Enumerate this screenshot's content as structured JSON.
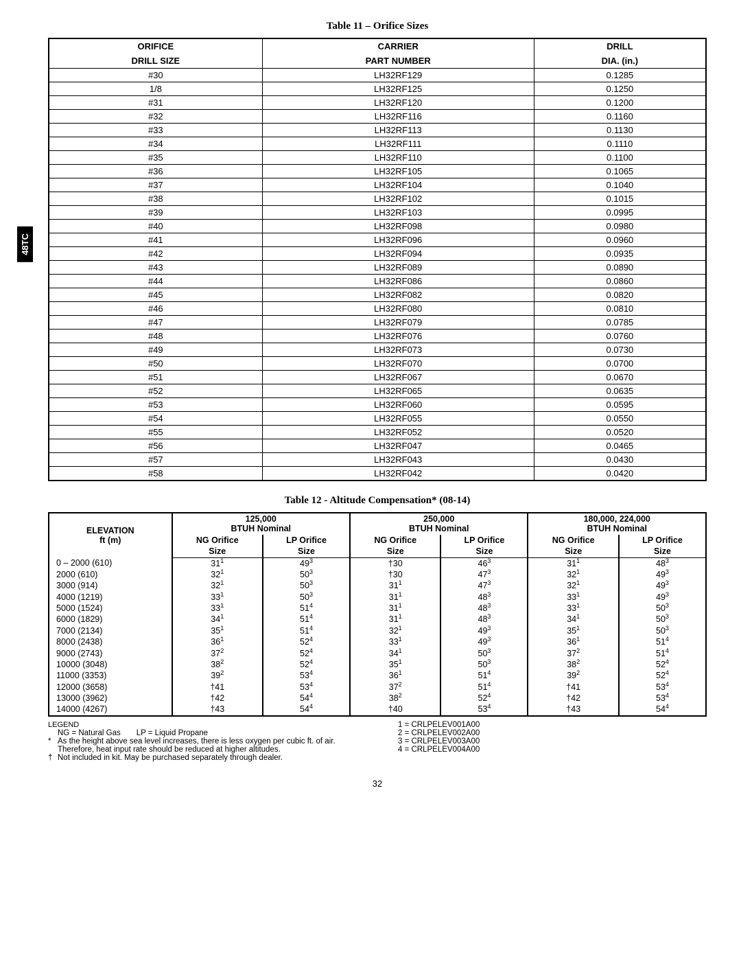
{
  "side_tab": "48TC",
  "table11": {
    "title": "Table 11 – Orifice Sizes",
    "headers": {
      "col1_line1": "ORIFICE",
      "col1_line2": "DRILL SIZE",
      "col2_line1": "CARRIER",
      "col2_line2": "PART NUMBER",
      "col3_line1": "DRILL",
      "col3_line2": "DIA. (in.)"
    },
    "rows": [
      [
        "#30",
        "LH32RF129",
        "0.1285"
      ],
      [
        "1/8",
        "LH32RF125",
        "0.1250"
      ],
      [
        "#31",
        "LH32RF120",
        "0.1200"
      ],
      [
        "#32",
        "LH32RF116",
        "0.1160"
      ],
      [
        "#33",
        "LH32RF113",
        "0.1130"
      ],
      [
        "#34",
        "LH32RF111",
        "0.1110"
      ],
      [
        "#35",
        "LH32RF110",
        "0.1100"
      ],
      [
        "#36",
        "LH32RF105",
        "0.1065"
      ],
      [
        "#37",
        "LH32RF104",
        "0.1040"
      ],
      [
        "#38",
        "LH32RF102",
        "0.1015"
      ],
      [
        "#39",
        "LH32RF103",
        "0.0995"
      ],
      [
        "#40",
        "LH32RF098",
        "0.0980"
      ],
      [
        "#41",
        "LH32RF096",
        "0.0960"
      ],
      [
        "#42",
        "LH32RF094",
        "0.0935"
      ],
      [
        "#43",
        "LH32RF089",
        "0.0890"
      ],
      [
        "#44",
        "LH32RF086",
        "0.0860"
      ],
      [
        "#45",
        "LH32RF082",
        "0.0820"
      ],
      [
        "#46",
        "LH32RF080",
        "0.0810"
      ],
      [
        "#47",
        "LH32RF079",
        "0.0785"
      ],
      [
        "#48",
        "LH32RF076",
        "0.0760"
      ],
      [
        "#49",
        "LH32RF073",
        "0.0730"
      ],
      [
        "#50",
        "LH32RF070",
        "0.0700"
      ],
      [
        "#51",
        "LH32RF067",
        "0.0670"
      ],
      [
        "#52",
        "LH32RF065",
        "0.0635"
      ],
      [
        "#53",
        "LH32RF060",
        "0.0595"
      ],
      [
        "#54",
        "LH32RF055",
        "0.0550"
      ],
      [
        "#55",
        "LH32RF052",
        "0.0520"
      ],
      [
        "#56",
        "LH32RF047",
        "0.0465"
      ],
      [
        "#57",
        "LH32RF043",
        "0.0430"
      ],
      [
        "#58",
        "LH32RF042",
        "0.0420"
      ]
    ]
  },
  "table12": {
    "title": "Table 12 - Altitude Compensation* (08-14)",
    "header_elevation_line1": "ELEVATION",
    "header_elevation_line2": "ft (m)",
    "group_headers": [
      {
        "line1": "125,000",
        "line2": "BTUH Nominal"
      },
      {
        "line1": "250,000",
        "line2": "BTUH Nominal"
      },
      {
        "line1": "180,000, 224,000",
        "line2": "BTUH Nominal"
      }
    ],
    "sub_headers": {
      "ng_line1": "NG Orifice",
      "ng_line2": "Size",
      "lp_line1": "LP Orifice",
      "lp_line2": "Size"
    },
    "rows": [
      {
        "elev": "0 – 2000 (610)",
        "c": [
          [
            "31",
            "1"
          ],
          [
            "49",
            "3"
          ],
          [
            "†30",
            ""
          ],
          [
            "46",
            "3"
          ],
          [
            "31",
            "1"
          ],
          [
            "48",
            "3"
          ]
        ]
      },
      {
        "elev": "2000 (610)",
        "c": [
          [
            "32",
            "1"
          ],
          [
            "50",
            "3"
          ],
          [
            "†30",
            ""
          ],
          [
            "47",
            "3"
          ],
          [
            "32",
            "1"
          ],
          [
            "49",
            "3"
          ]
        ]
      },
      {
        "elev": "3000 (914)",
        "c": [
          [
            "32",
            "1"
          ],
          [
            "50",
            "3"
          ],
          [
            "31",
            "1"
          ],
          [
            "47",
            "3"
          ],
          [
            "32",
            "1"
          ],
          [
            "49",
            "3"
          ]
        ]
      },
      {
        "elev": "4000 (1219)",
        "c": [
          [
            "33",
            "1"
          ],
          [
            "50",
            "3"
          ],
          [
            "31",
            "1"
          ],
          [
            "48",
            "3"
          ],
          [
            "33",
            "1"
          ],
          [
            "49",
            "3"
          ]
        ]
      },
      {
        "elev": "5000 (1524)",
        "c": [
          [
            "33",
            "1"
          ],
          [
            "51",
            "4"
          ],
          [
            "31",
            "1"
          ],
          [
            "48",
            "3"
          ],
          [
            "33",
            "1"
          ],
          [
            "50",
            "3"
          ]
        ]
      },
      {
        "elev": "6000 (1829)",
        "c": [
          [
            "34",
            "1"
          ],
          [
            "51",
            "4"
          ],
          [
            "31",
            "1"
          ],
          [
            "48",
            "3"
          ],
          [
            "34",
            "1"
          ],
          [
            "50",
            "3"
          ]
        ]
      },
      {
        "elev": "7000 (2134)",
        "c": [
          [
            "35",
            "1"
          ],
          [
            "51",
            "4"
          ],
          [
            "32",
            "1"
          ],
          [
            "49",
            "3"
          ],
          [
            "35",
            "1"
          ],
          [
            "50",
            "3"
          ]
        ]
      },
      {
        "elev": "8000 (2438)",
        "c": [
          [
            "36",
            "1"
          ],
          [
            "52",
            "4"
          ],
          [
            "33",
            "1"
          ],
          [
            "49",
            "3"
          ],
          [
            "36",
            "1"
          ],
          [
            "51",
            "4"
          ]
        ]
      },
      {
        "elev": "9000 (2743)",
        "c": [
          [
            "37",
            "2"
          ],
          [
            "52",
            "4"
          ],
          [
            "34",
            "1"
          ],
          [
            "50",
            "3"
          ],
          [
            "37",
            "2"
          ],
          [
            "51",
            "4"
          ]
        ]
      },
      {
        "elev": "10000 (3048)",
        "c": [
          [
            "38",
            "2"
          ],
          [
            "52",
            "4"
          ],
          [
            "35",
            "1"
          ],
          [
            "50",
            "3"
          ],
          [
            "38",
            "2"
          ],
          [
            "52",
            "4"
          ]
        ]
      },
      {
        "elev": "11000 (3353)",
        "c": [
          [
            "39",
            "2"
          ],
          [
            "53",
            "4"
          ],
          [
            "36",
            "1"
          ],
          [
            "51",
            "4"
          ],
          [
            "39",
            "2"
          ],
          [
            "52",
            "4"
          ]
        ]
      },
      {
        "elev": "12000 (3658)",
        "c": [
          [
            "†41",
            ""
          ],
          [
            "53",
            "4"
          ],
          [
            "37",
            "2"
          ],
          [
            "51",
            "4"
          ],
          [
            "†41",
            ""
          ],
          [
            "53",
            "4"
          ]
        ]
      },
      {
        "elev": "13000 (3962)",
        "c": [
          [
            "†42",
            ""
          ],
          [
            "54",
            "4"
          ],
          [
            "38",
            "2"
          ],
          [
            "52",
            "4"
          ],
          [
            "†42",
            ""
          ],
          [
            "53",
            "4"
          ]
        ]
      },
      {
        "elev": "14000 (4267)",
        "c": [
          [
            "†43",
            ""
          ],
          [
            "54",
            "4"
          ],
          [
            "†40",
            ""
          ],
          [
            "53",
            "4"
          ],
          [
            "†43",
            ""
          ],
          [
            "54",
            "4"
          ]
        ]
      }
    ]
  },
  "legend": {
    "title": "LEGEND",
    "left": [
      {
        "b": "",
        "t": "NG = Natural Gas  LP = Liquid Propane"
      },
      {
        "b": "*",
        "t": "As the height above sea level increases, there is less oxygen per cubic ft. of air. Therefore, heat input rate should be reduced at higher altitudes."
      },
      {
        "b": "†",
        "t": "Not included in kit. May be purchased separately through dealer."
      }
    ],
    "right": [
      "1 = CRLPELEV001A00",
      "2 = CRLPELEV002A00",
      "3 = CRLPELEV003A00",
      "4 = CRLPELEV004A00"
    ]
  },
  "page_number": "32"
}
